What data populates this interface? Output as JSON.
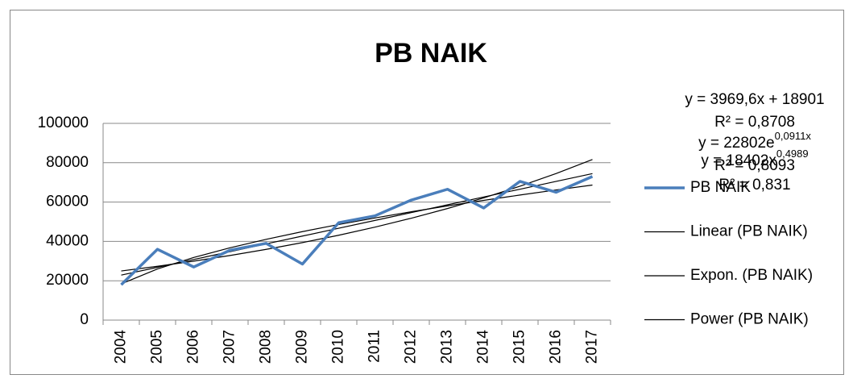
{
  "chart_data": {
    "type": "line",
    "title": "PB NAIK",
    "categories": [
      "2004",
      "2005",
      "2006",
      "2007",
      "2008",
      "2009",
      "2010",
      "2011",
      "2012",
      "2013",
      "2014",
      "2015",
      "2016",
      "2017"
    ],
    "series": [
      {
        "name": "PB NAIK",
        "color": "#4a7ebb",
        "values": [
          18000,
          36000,
          27000,
          35500,
          39000,
          28500,
          49500,
          53000,
          61000,
          66500,
          57000,
          70500,
          65000,
          73000
        ]
      },
      {
        "name": "Linear (PB NAIK)",
        "color": "#000000",
        "values": [
          22871,
          26840,
          30810,
          34779,
          38749,
          42719,
          46688,
          50658,
          54627,
          58597,
          62567,
          66536,
          70506,
          74475
        ]
      },
      {
        "name": "Expon. (PB NAIK)",
        "color": "#000000",
        "values": [
          24977,
          27359,
          29969,
          32827,
          35958,
          39388,
          43145,
          47260,
          51768,
          56706,
          62115,
          68040,
          74530,
          81639
        ]
      },
      {
        "name": "Power (PB NAIK)",
        "color": "#000000",
        "values": [
          18402,
          26004,
          31835,
          36747,
          41073,
          44987,
          48583,
          51929,
          55073,
          58044,
          60872,
          63572,
          66161,
          68656
        ]
      }
    ],
    "ylim": [
      0,
      100000
    ],
    "yticks": [
      0,
      20000,
      40000,
      60000,
      80000,
      100000
    ],
    "grid": true,
    "legend": "right",
    "annotations": [
      {
        "text": "y = 3969,6x + 18901",
        "r2": "R² = 0,8708"
      },
      {
        "text": "y = 22802e",
        "sup": "0,0911x",
        "r2": "R² = 0,8093"
      },
      {
        "text": "y = 18402x",
        "sup": "0,4989",
        "r2": "R² = 0,831"
      }
    ]
  }
}
